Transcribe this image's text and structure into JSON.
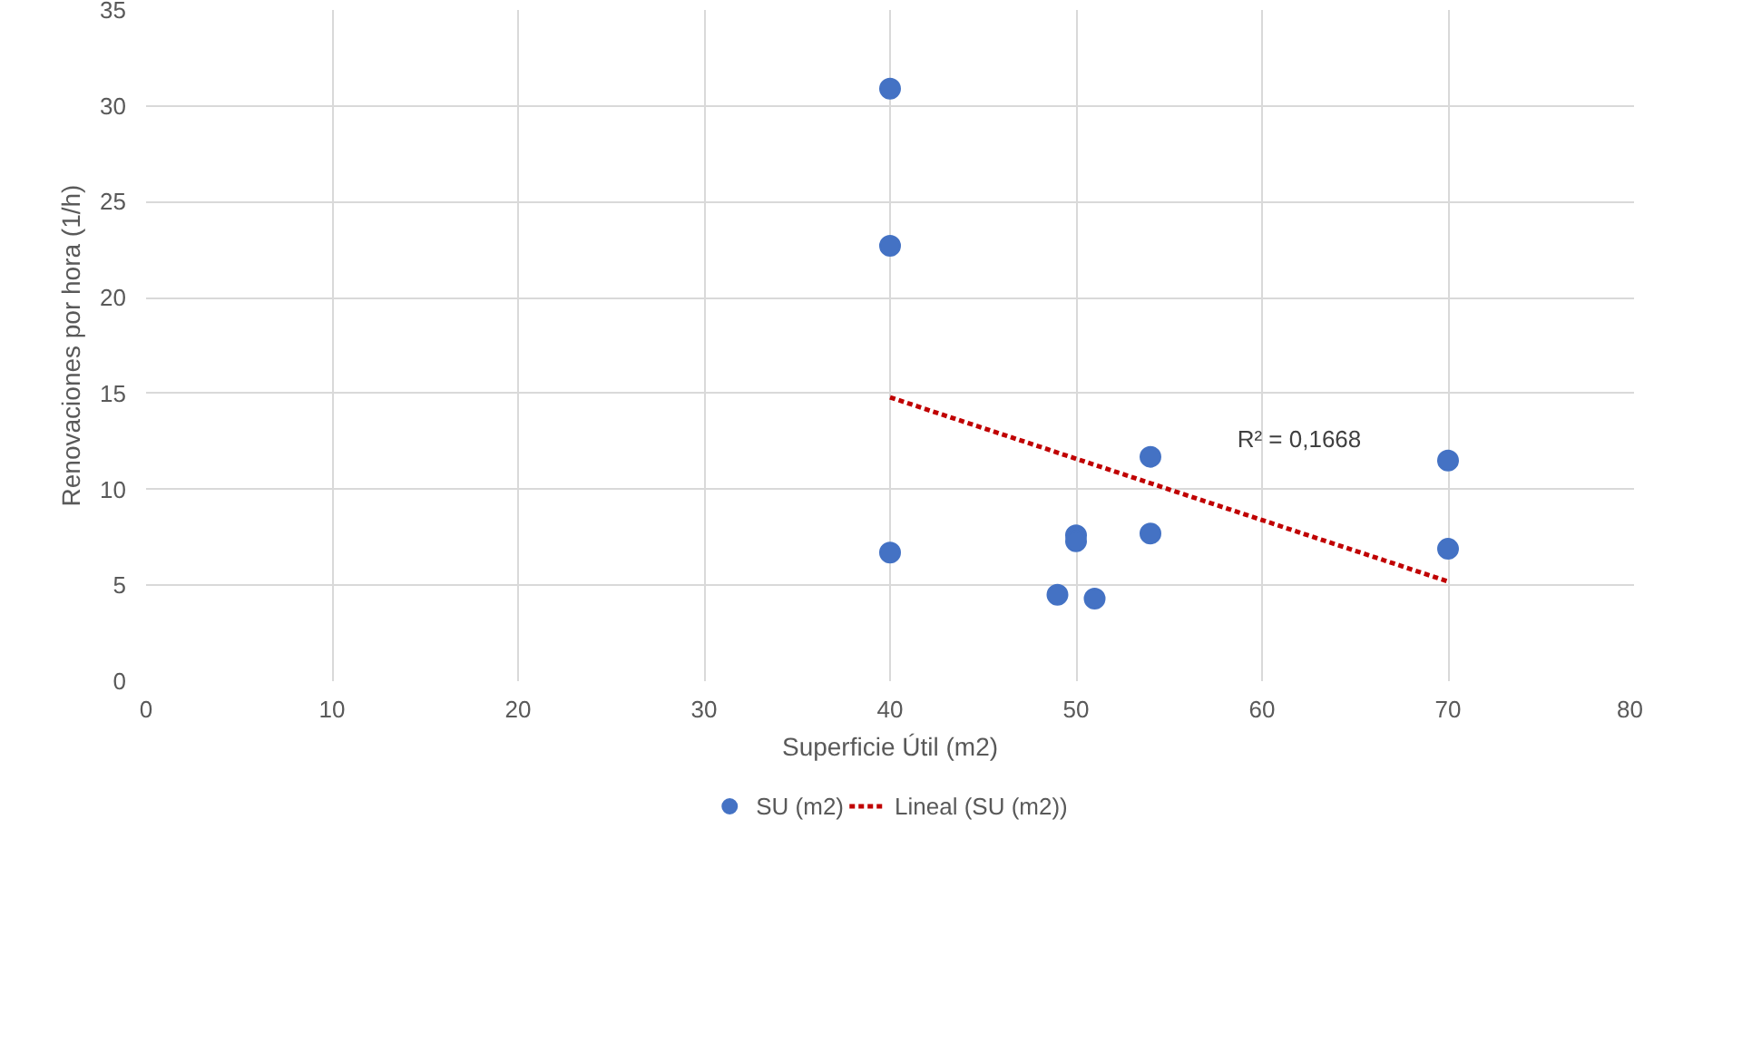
{
  "chart_data": {
    "type": "scatter",
    "xlabel": "Superficie Útil (m2)",
    "ylabel": "Renovaciones por hora (1/h)",
    "x": [
      40,
      40,
      40,
      49,
      50,
      50,
      51,
      54,
      54,
      70,
      70
    ],
    "series": [
      {
        "name": "SU (m2)",
        "color": "#4472c4",
        "values": [
          30.9,
          22.7,
          6.7,
          4.5,
          7.6,
          7.3,
          4.3,
          11.7,
          7.7,
          11.5,
          6.9
        ],
        "marker": "circle"
      },
      {
        "name": "Lineal (SU (m2))",
        "type": "line",
        "color": "#c00000",
        "x": [
          40,
          70
        ],
        "values": [
          14.8,
          5.2
        ],
        "line_style": "dotted"
      }
    ],
    "annotations": [
      "R² = 0,1668"
    ],
    "xlim": [
      0,
      80
    ],
    "xticks": [
      0,
      10,
      20,
      30,
      40,
      50,
      60,
      70,
      80
    ],
    "ylim": [
      0,
      35
    ],
    "yticks": [
      0,
      5,
      10,
      15,
      20,
      25,
      30,
      35
    ],
    "grid": true,
    "legend": "bottom"
  }
}
